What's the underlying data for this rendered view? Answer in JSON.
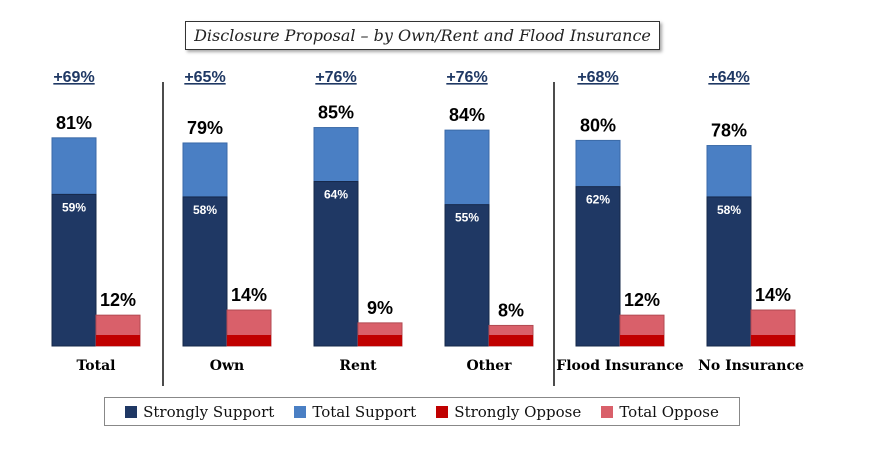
{
  "colors": {
    "strong_support": "#1f3864",
    "total_support": "#4a7fc4",
    "strong_oppose": "#c00000",
    "total_oppose": "#d9606a",
    "net": "#1f3864"
  },
  "chart_data": {
    "type": "bar",
    "title": "Disclosure Proposal – by Own/Rent and Flood Insurance",
    "categories": [
      "Total",
      "Own",
      "Rent",
      "Other",
      "Flood Insurance",
      "No Insurance"
    ],
    "net": [
      "+69%",
      "+65%",
      "+76%",
      "+76%",
      "+68%",
      "+64%"
    ],
    "series": [
      {
        "name": "Strongly Support",
        "values": [
          59,
          58,
          64,
          55,
          62,
          58
        ]
      },
      {
        "name": "Total Support",
        "values": [
          81,
          79,
          85,
          84,
          80,
          78
        ]
      },
      {
        "name": "Strongly Oppose",
        "values": [
          null,
          null,
          null,
          null,
          null,
          null
        ]
      },
      {
        "name": "Total Oppose",
        "values": [
          12,
          14,
          9,
          8,
          12,
          14
        ]
      }
    ],
    "ylim": [
      0,
      100
    ],
    "groups_divided_after": [
      "Total",
      "Other"
    ]
  },
  "legend": [
    {
      "label": "Strongly Support",
      "color_key": "strong_support"
    },
    {
      "label": "Total Support",
      "color_key": "total_support"
    },
    {
      "label": "Strongly Oppose",
      "color_key": "strong_oppose"
    },
    {
      "label": "Total Oppose",
      "color_key": "total_oppose"
    }
  ]
}
